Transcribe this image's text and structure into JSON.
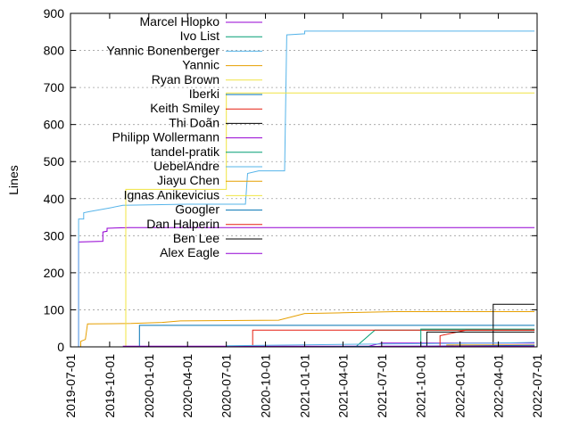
{
  "chart_data": {
    "type": "line",
    "title": "",
    "xlabel": "",
    "ylabel": "Lines",
    "ylim": [
      0,
      900
    ],
    "xlim": [
      "2019-07-01",
      "2022-07-01"
    ],
    "x_ticks": [
      "2019-07-01",
      "2019-10-01",
      "2020-01-01",
      "2020-04-01",
      "2020-07-01",
      "2020-10-01",
      "2021-01-01",
      "2021-04-01",
      "2021-07-01",
      "2021-10-01",
      "2022-01-01",
      "2022-04-01",
      "2022-07-01"
    ],
    "y_ticks": [
      0,
      100,
      200,
      300,
      400,
      500,
      600,
      700,
      800,
      900
    ],
    "grid": "horizontal dotted",
    "legend_position": "top-center",
    "series": [
      {
        "name": "Marcel Hlopko",
        "color": "#9400d3",
        "points": [
          [
            "2019-07-20",
            0
          ],
          [
            "2019-07-20",
            283
          ],
          [
            "2019-09-15",
            285
          ],
          [
            "2019-09-15",
            310
          ],
          [
            "2019-09-25",
            312
          ],
          [
            "2019-09-25",
            320
          ],
          [
            "2019-11-15",
            322
          ],
          [
            "2022-06-25",
            322
          ]
        ]
      },
      {
        "name": "Ivo List",
        "color": "#009e73",
        "points": [
          [
            "2021-05-01",
            0
          ],
          [
            "2021-06-15",
            45
          ],
          [
            "2022-06-25",
            45
          ]
        ]
      },
      {
        "name": "Yannic Bonenberger",
        "color": "#56b4e9",
        "points": [
          [
            "2019-07-20",
            0
          ],
          [
            "2019-07-20",
            345
          ],
          [
            "2019-08-01",
            345
          ],
          [
            "2019-08-01",
            362
          ],
          [
            "2019-08-15",
            365
          ],
          [
            "2019-10-01",
            375
          ],
          [
            "2019-11-01",
            382
          ],
          [
            "2020-04-01",
            385
          ],
          [
            "2020-08-15",
            385
          ],
          [
            "2020-08-20",
            468
          ],
          [
            "2020-09-15",
            475
          ],
          [
            "2020-11-15",
            475
          ],
          [
            "2020-11-20",
            842
          ],
          [
            "2021-01-01",
            845
          ],
          [
            "2021-01-01",
            852
          ],
          [
            "2022-06-25",
            852
          ]
        ]
      },
      {
        "name": "Yannic",
        "color": "#e69f00",
        "points": [
          [
            "2019-07-25",
            0
          ],
          [
            "2019-07-25",
            15
          ],
          [
            "2019-08-05",
            20
          ],
          [
            "2019-08-10",
            62
          ],
          [
            "2019-11-20",
            63
          ],
          [
            "2020-02-01",
            66
          ],
          [
            "2020-03-15",
            70
          ],
          [
            "2020-11-01",
            72
          ],
          [
            "2021-01-01",
            90
          ],
          [
            "2021-04-01",
            92
          ],
          [
            "2021-08-01",
            95
          ],
          [
            "2022-06-25",
            95
          ]
        ]
      },
      {
        "name": "Ryan Brown",
        "color": "#f0e442",
        "points": [
          [
            "2019-11-08",
            0
          ],
          [
            "2019-11-08",
            425
          ],
          [
            "2020-07-01",
            425
          ],
          [
            "2020-07-01",
            685
          ],
          [
            "2022-06-25",
            685
          ]
        ]
      },
      {
        "name": "Iberki",
        "color": "#0072b2",
        "points": [
          [
            "2019-12-10",
            0
          ],
          [
            "2019-12-10",
            58
          ],
          [
            "2022-06-25",
            58
          ]
        ]
      },
      {
        "name": "Keith Smiley",
        "color": "#e51e10",
        "points": [
          [
            "2020-09-01",
            0
          ],
          [
            "2020-09-01",
            45
          ],
          [
            "2022-06-25",
            45
          ]
        ]
      },
      {
        "name": "Thi Doãn",
        "color": "#000000",
        "points": [
          [
            "2022-03-20",
            0
          ],
          [
            "2022-03-20",
            115
          ],
          [
            "2022-06-25",
            115
          ]
        ]
      },
      {
        "name": "Philipp Wollermann",
        "color": "#9400d3",
        "points": [
          [
            "2019-11-01",
            2
          ],
          [
            "2021-06-01",
            2
          ],
          [
            "2021-07-01",
            10
          ],
          [
            "2022-06-25",
            10
          ]
        ]
      },
      {
        "name": "tandel-pratik",
        "color": "#009e73",
        "points": [
          [
            "2021-10-01",
            0
          ],
          [
            "2021-10-01",
            48
          ],
          [
            "2022-06-25",
            48
          ]
        ]
      },
      {
        "name": "UebelAndre",
        "color": "#56b4e9",
        "points": [
          [
            "2020-07-01",
            3
          ],
          [
            "2021-07-01",
            8
          ],
          [
            "2022-04-01",
            10
          ],
          [
            "2022-06-25",
            12
          ]
        ]
      },
      {
        "name": "Jiayu Chen",
        "color": "#e69f00",
        "points": [
          [
            "2021-12-01",
            0
          ],
          [
            "2021-12-01",
            5
          ],
          [
            "2022-06-25",
            5
          ]
        ]
      },
      {
        "name": "Ignas Anikevicius",
        "color": "#f0e442",
        "points": [
          [
            "2022-05-01",
            0
          ],
          [
            "2022-05-01",
            3
          ],
          [
            "2022-06-25",
            3
          ]
        ]
      },
      {
        "name": "Googler",
        "color": "#0072b2",
        "points": [
          [
            "2021-01-01",
            0
          ],
          [
            "2021-10-01",
            2
          ],
          [
            "2022-06-25",
            4
          ]
        ]
      },
      {
        "name": "Dan Halperin",
        "color": "#e51e10",
        "points": [
          [
            "2021-11-15",
            0
          ],
          [
            "2021-11-15",
            30
          ],
          [
            "2022-01-15",
            45
          ],
          [
            "2022-06-25",
            45
          ]
        ]
      },
      {
        "name": "Ben Lee",
        "color": "#000000",
        "points": [
          [
            "2021-10-15",
            0
          ],
          [
            "2021-10-15",
            40
          ],
          [
            "2022-06-25",
            40
          ]
        ]
      },
      {
        "name": "Alex Eagle",
        "color": "#9400d3",
        "points": [
          [
            "2021-06-01",
            0
          ],
          [
            "2021-07-01",
            2
          ],
          [
            "2022-06-25",
            2
          ]
        ]
      }
    ]
  }
}
